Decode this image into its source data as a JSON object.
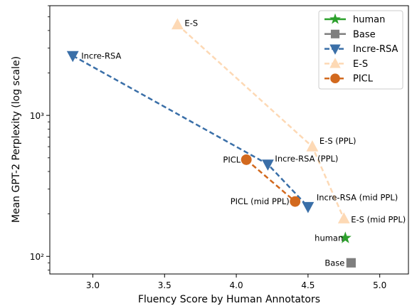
{
  "chart_data": {
    "type": "scatter",
    "xlabel": "Fluency Score by Human Annotators",
    "ylabel": "Mean GPT-2 Perplexity (log scale)",
    "xlim": [
      2.7,
      5.2
    ],
    "ylim": [
      75,
      6000
    ],
    "yscale": "log",
    "x_ticks": [
      3.0,
      3.5,
      4.0,
      4.5,
      5.0
    ],
    "x_tick_labels": [
      "3.0",
      "3.5",
      "4.0",
      "4.5",
      "5.0"
    ],
    "y_ticks": [
      100,
      1000
    ],
    "y_tick_labels": [
      "10²",
      "10³"
    ],
    "grid": false,
    "legend_position": "top-right",
    "series": [
      {
        "name": "human",
        "color": "#2ca02c",
        "marker": "star",
        "line": false,
        "points": [
          {
            "x": 4.76,
            "y": 135,
            "label": "human"
          }
        ]
      },
      {
        "name": "Base",
        "color": "#7f7f7f",
        "marker": "square",
        "line": false,
        "points": [
          {
            "x": 4.8,
            "y": 90,
            "label": "Base"
          }
        ]
      },
      {
        "name": "Incre-RSA",
        "color": "#3a6fa8",
        "marker": "triangle-down",
        "line": true,
        "points": [
          {
            "x": 2.86,
            "y": 2650,
            "label": "Incre-RSA"
          },
          {
            "x": 4.22,
            "y": 450,
            "label": "Incre-RSA (PPL)"
          },
          {
            "x": 4.5,
            "y": 225,
            "label": "Incre-RSA (mid PPL)"
          }
        ]
      },
      {
        "name": "E-S",
        "color": "#fdd9b5",
        "marker": "triangle-up",
        "line": true,
        "points": [
          {
            "x": 3.59,
            "y": 4400,
            "label": "E-S"
          },
          {
            "x": 4.53,
            "y": 600,
            "label": "E-S (PPL)"
          },
          {
            "x": 4.75,
            "y": 185,
            "label": "E-S (mid PPL)"
          }
        ]
      },
      {
        "name": "PICL",
        "color": "#d2691e",
        "marker": "circle",
        "line": true,
        "points": [
          {
            "x": 4.07,
            "y": 485,
            "label": "PICL"
          },
          {
            "x": 4.41,
            "y": 245,
            "label": "PICL (mid PPL)"
          }
        ]
      }
    ]
  }
}
